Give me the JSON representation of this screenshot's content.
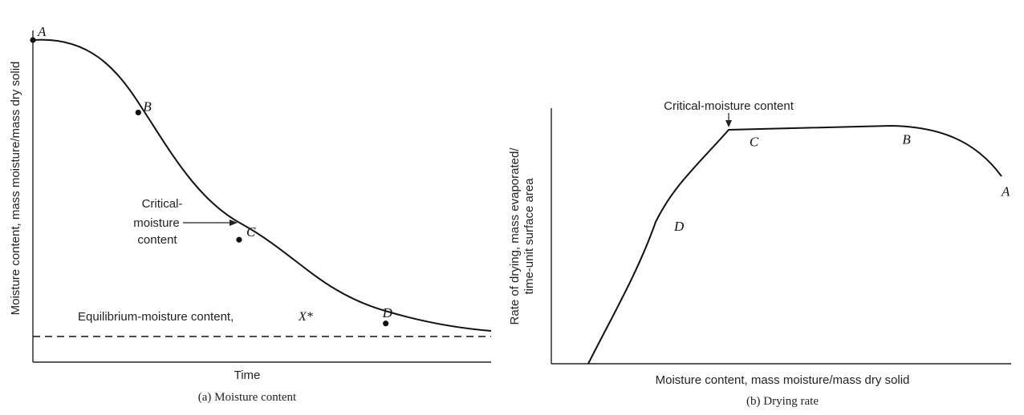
{
  "chart_data": [
    {
      "type": "line",
      "caption": "(a) Moisture content",
      "xlabel": "Time",
      "ylabel": "Moisture content, mass moisture/mass dry solid",
      "points": [
        {
          "label": "A",
          "x": 0.0,
          "y": 0.0
        },
        {
          "label": "B",
          "x": 0.23,
          "y": 0.225
        },
        {
          "label": "C",
          "x": 0.45,
          "y": 0.62
        },
        {
          "label": "D",
          "x": 0.77,
          "y": 0.88
        }
      ],
      "annotations": {
        "critical": [
          "Critical-",
          "moisture",
          "content"
        ],
        "equilibrium": "Equilibrium-moisture content,",
        "equilibrium_symbol": "X*"
      }
    },
    {
      "type": "line",
      "caption": "(b) Drying rate",
      "xlabel": "Moisture content, mass moisture/mass dry solid",
      "ylabel": [
        "Rate of drying, mass evaporated/",
        "time-unit surface area"
      ],
      "points": [
        {
          "label": "D",
          "x": 0.2,
          "y": 0.57
        },
        {
          "label": "C",
          "x": 0.39,
          "y": 0.93
        },
        {
          "label": "B",
          "x": 0.76,
          "y": 0.94
        },
        {
          "label": "A",
          "x": 1.0,
          "y": 0.73
        }
      ],
      "annotations": {
        "critical": "Critical-moisture content"
      }
    }
  ]
}
